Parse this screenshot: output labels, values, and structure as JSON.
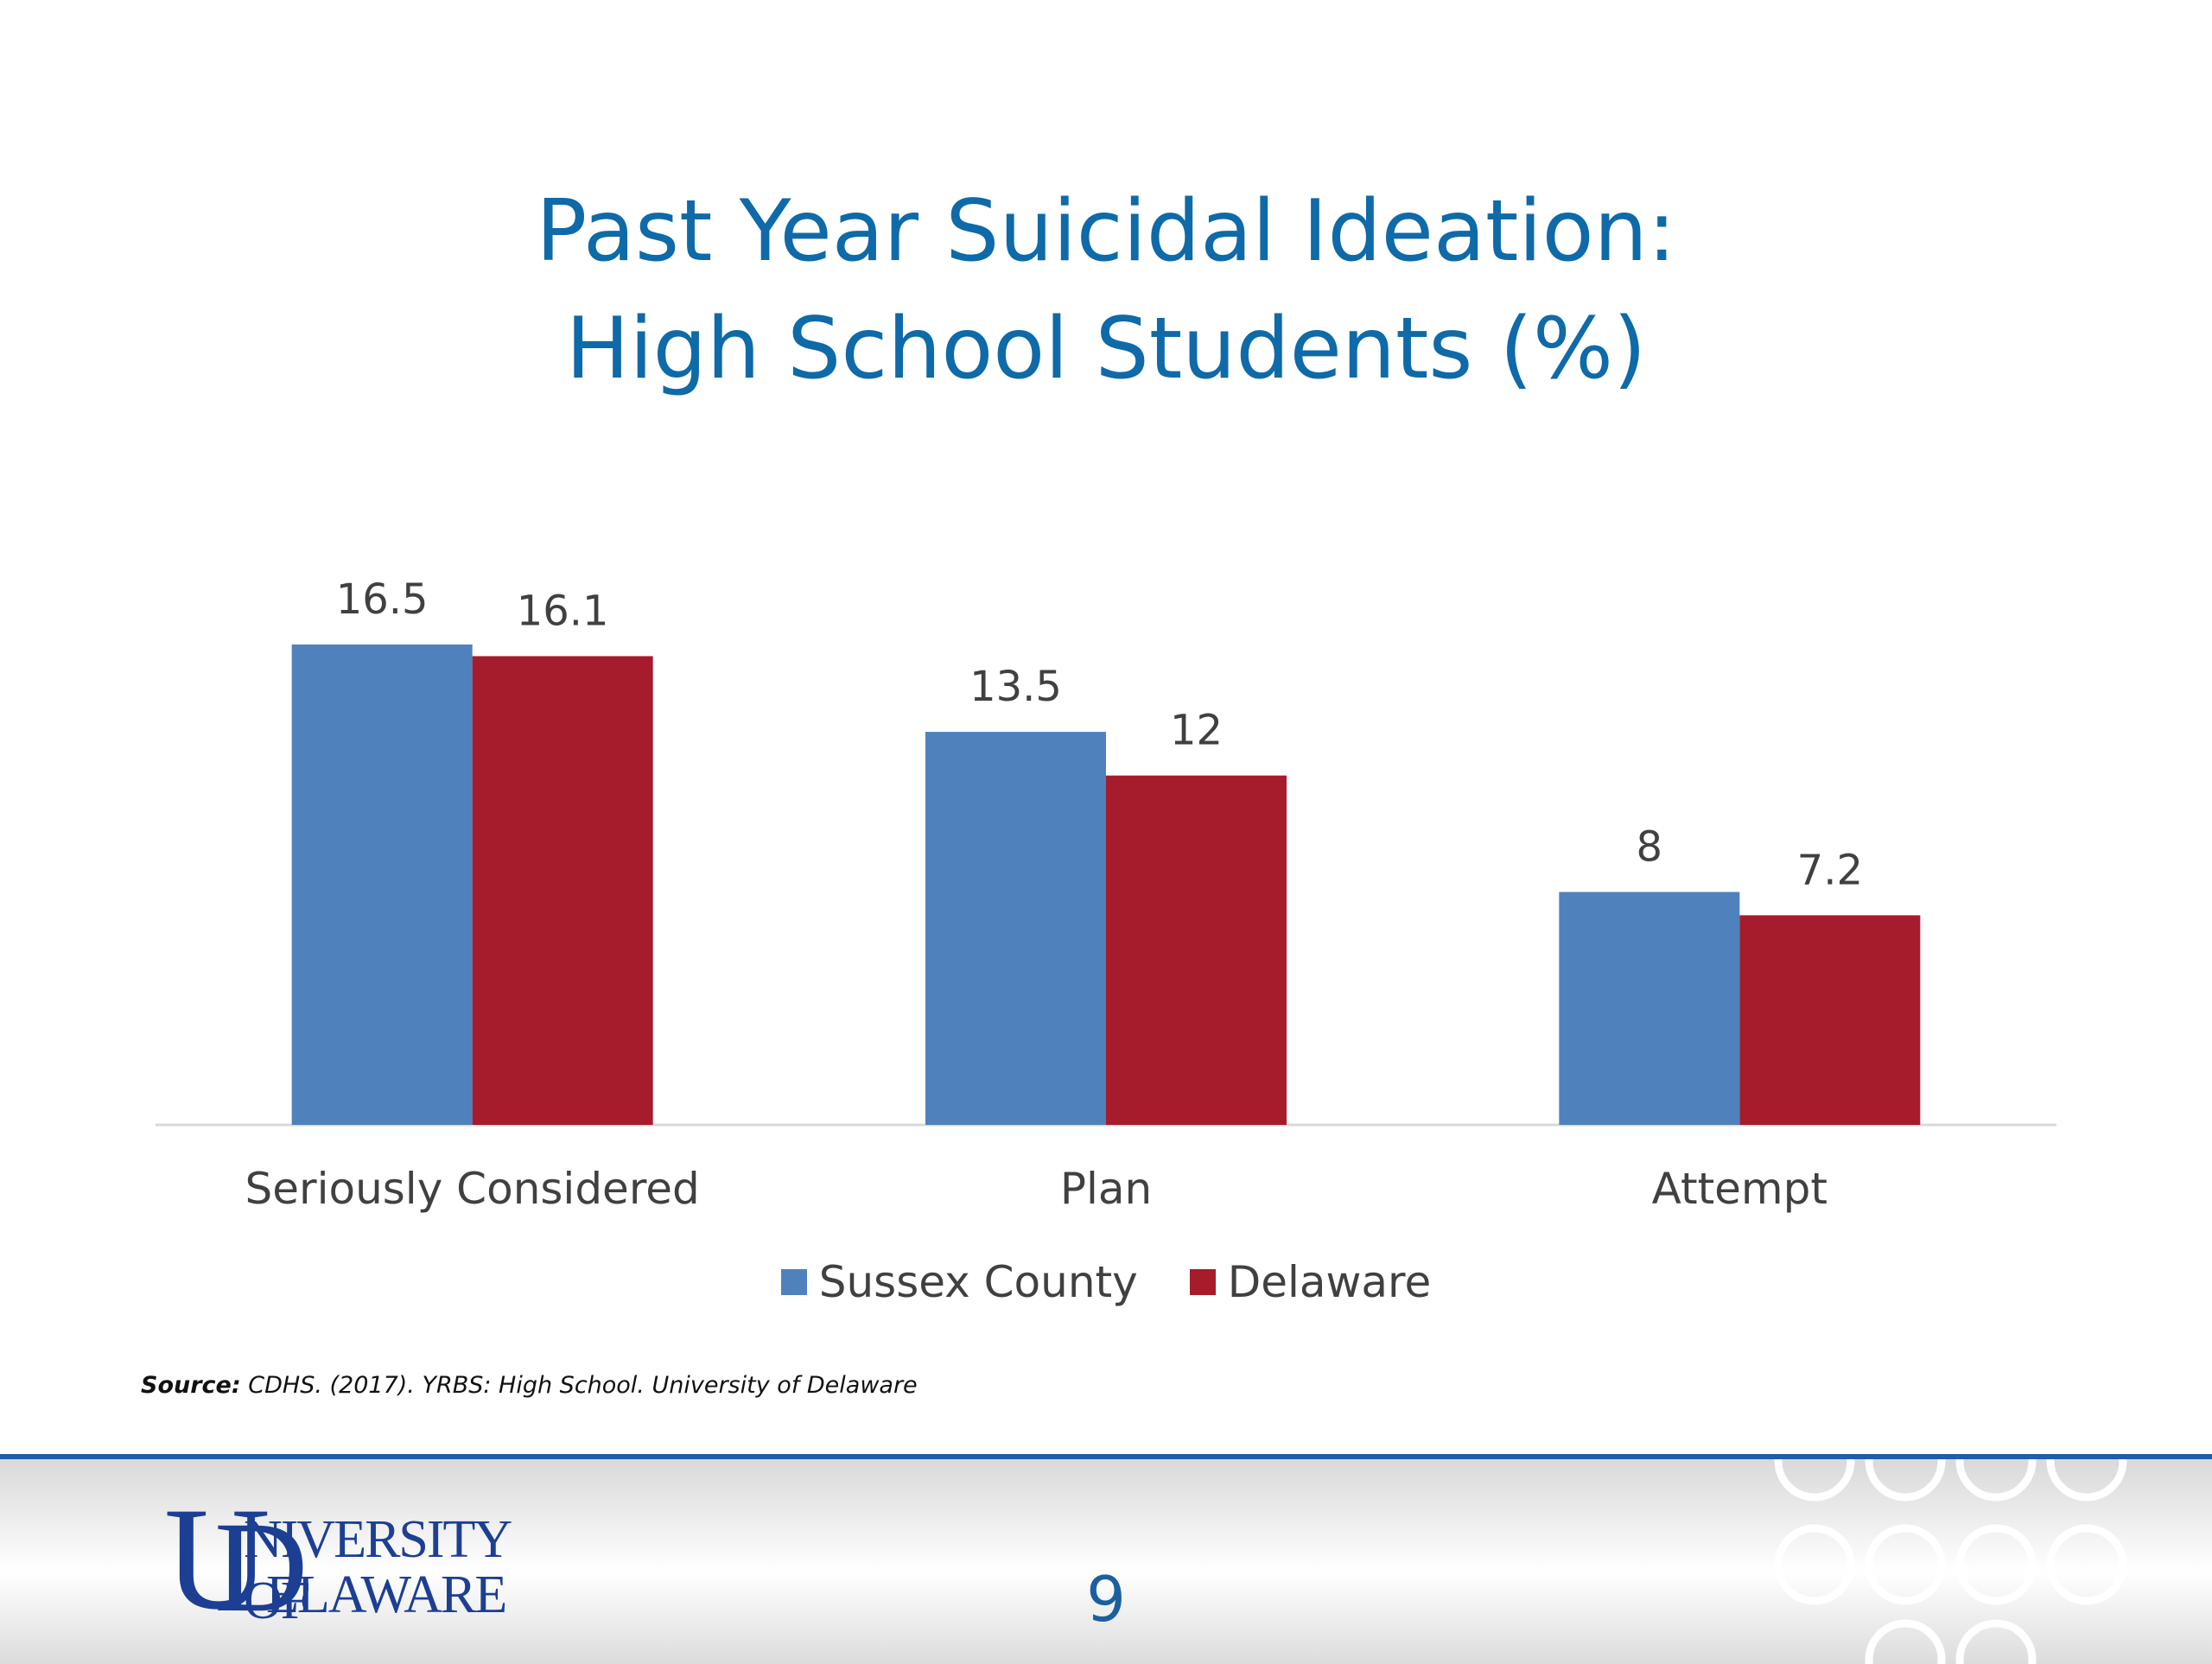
{
  "slide": {
    "title_line1": "Past Year Suicidal Ideation:",
    "title_line2": "High School Students (%)",
    "source_label": "Source:",
    "source_text": "CDHS. (2017). YRBS: High School. University of Delaware",
    "page_number": "9",
    "logo": {
      "word1": "NIVERSITY OF",
      "word2": "ELAWARE",
      "letter_u": "U",
      "letter_d": "D"
    }
  },
  "chart_data": {
    "type": "bar",
    "title": "",
    "categories": [
      "Seriously Considered",
      "Plan",
      "Attempt"
    ],
    "series": [
      {
        "name": "Sussex County",
        "color": "#4f81bd",
        "values": [
          16.5,
          13.5,
          8
        ]
      },
      {
        "name": "Delaware",
        "color": "#a61c2c",
        "values": [
          16.1,
          12,
          7.2
        ]
      }
    ],
    "data_labels": [
      [
        "16.5",
        "13.5",
        "8"
      ],
      [
        "16.1",
        "12",
        "7.2"
      ]
    ],
    "ylim": [
      0,
      16.5
    ],
    "xlabel": "",
    "ylabel": "",
    "grid": false,
    "legend": "bottom"
  }
}
